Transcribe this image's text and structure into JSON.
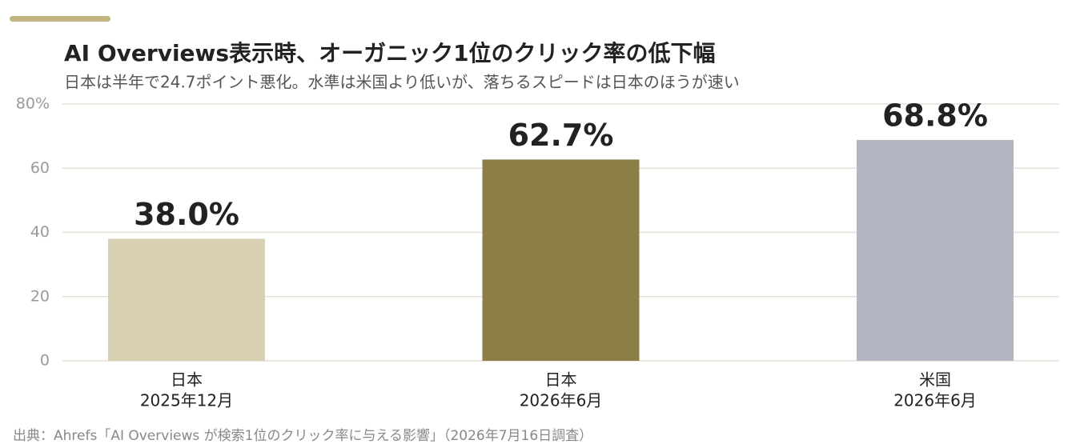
{
  "chart_data": {
    "type": "bar",
    "title": "AI Overviews表示時、オーガニック1位のクリック率の低下幅",
    "subtitle": "日本は半年で24.7ポイント悪化。水準は米国より低いが、落ちるスピードは日本のほうが速い",
    "categories": [
      [
        "日本",
        "2025年12月"
      ],
      [
        "日本",
        "2026年6月"
      ],
      [
        "米国",
        "2026年6月"
      ]
    ],
    "values": [
      38.0,
      62.7,
      68.8
    ],
    "value_labels": [
      "38.0%",
      "62.7%",
      "68.8%"
    ],
    "colors": [
      "#d8d0b2",
      "#8b7e47",
      "#b3b6c0"
    ],
    "ylim": [
      0,
      80
    ],
    "yticks": [
      0,
      20,
      40,
      60,
      {
        "value": 80,
        "label": "80%"
      }
    ],
    "grid": true,
    "source": "出典：Ahrefs「AI Overviews が検索1位のクリック率に与える影響」（2026年7月16日調査）"
  }
}
